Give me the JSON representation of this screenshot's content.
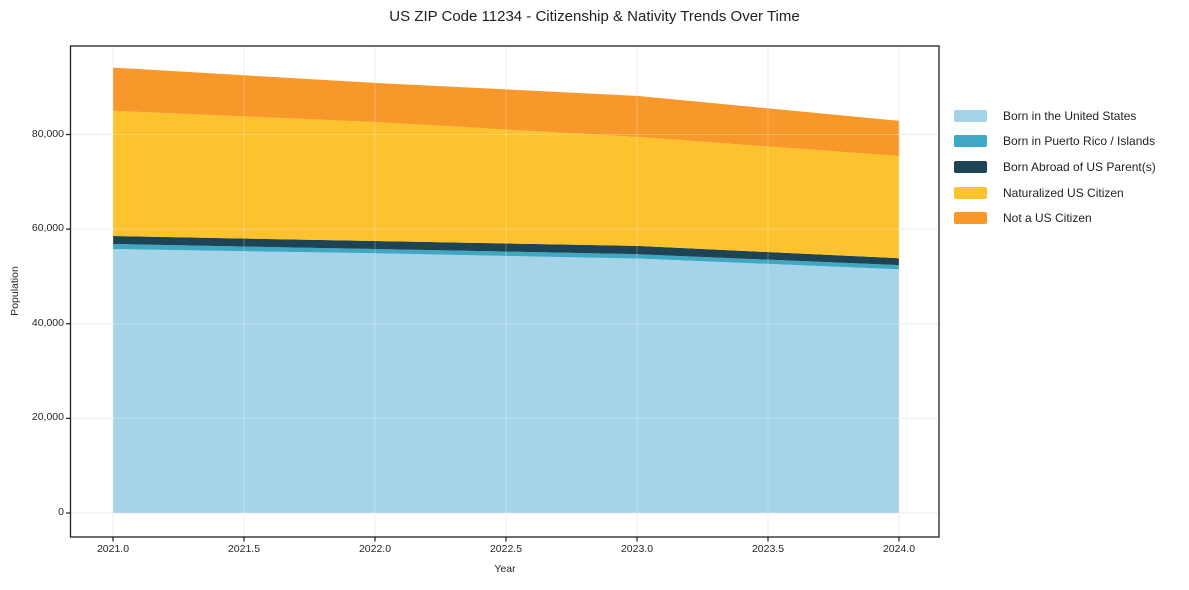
{
  "title": "US ZIP Code 11234 - Citizenship & Nativity Trends Over Time",
  "chart_data": {
    "type": "area",
    "stacked": true,
    "title": "US ZIP Code 11234 - Citizenship & Nativity Trends Over Time",
    "xlabel": "Year",
    "ylabel": "Population",
    "x": [
      2021,
      2022,
      2023,
      2024
    ],
    "series": [
      {
        "name": "Born in the United States",
        "color": "#a5d3e8",
        "values": [
          55800,
          54900,
          53800,
          51500
        ]
      },
      {
        "name": "Born in Puerto Rico / Islands",
        "color": "#3fa8c2",
        "values": [
          1050,
          900,
          900,
          900
        ]
      },
      {
        "name": "Born Abroad of US Parent(s)",
        "color": "#1e4355",
        "values": [
          1700,
          1700,
          1750,
          1450
        ]
      },
      {
        "name": "Naturalized US Citizen",
        "color": "#fcc32e",
        "values": [
          26450,
          25150,
          23050,
          21600
        ]
      },
      {
        "name": "Not a US Citizen",
        "color": "#f8982b",
        "values": [
          9150,
          8250,
          8650,
          7450
        ]
      }
    ],
    "stacked_totals": [
      94150,
      90900,
      88150,
      82900
    ],
    "xlim": [
      2020.84,
      2024.15
    ],
    "ylim": [
      -5073,
      98706
    ],
    "x_ticks": {
      "values": [
        2021.0,
        2021.5,
        2022.0,
        2022.5,
        2023.0,
        2023.5,
        2024.0
      ],
      "labels": [
        "2021.0",
        "2021.5",
        "2022.0",
        "2022.5",
        "2023.0",
        "2023.5",
        "2024.0"
      ]
    },
    "y_ticks": {
      "values": [
        0,
        20000,
        40000,
        60000,
        80000
      ],
      "labels": [
        "0",
        "20,000",
        "40,000",
        "60,000",
        "80,000"
      ]
    },
    "grid": true,
    "legend_position": "right"
  },
  "colors": {
    "background": "#ffffff",
    "grid": "#e7e7e7",
    "grid_over_fill": "rgba(255,255,255,0.28)",
    "spine": "#1f1f1f",
    "tick": "#1f1f1f",
    "text": "#262626"
  }
}
